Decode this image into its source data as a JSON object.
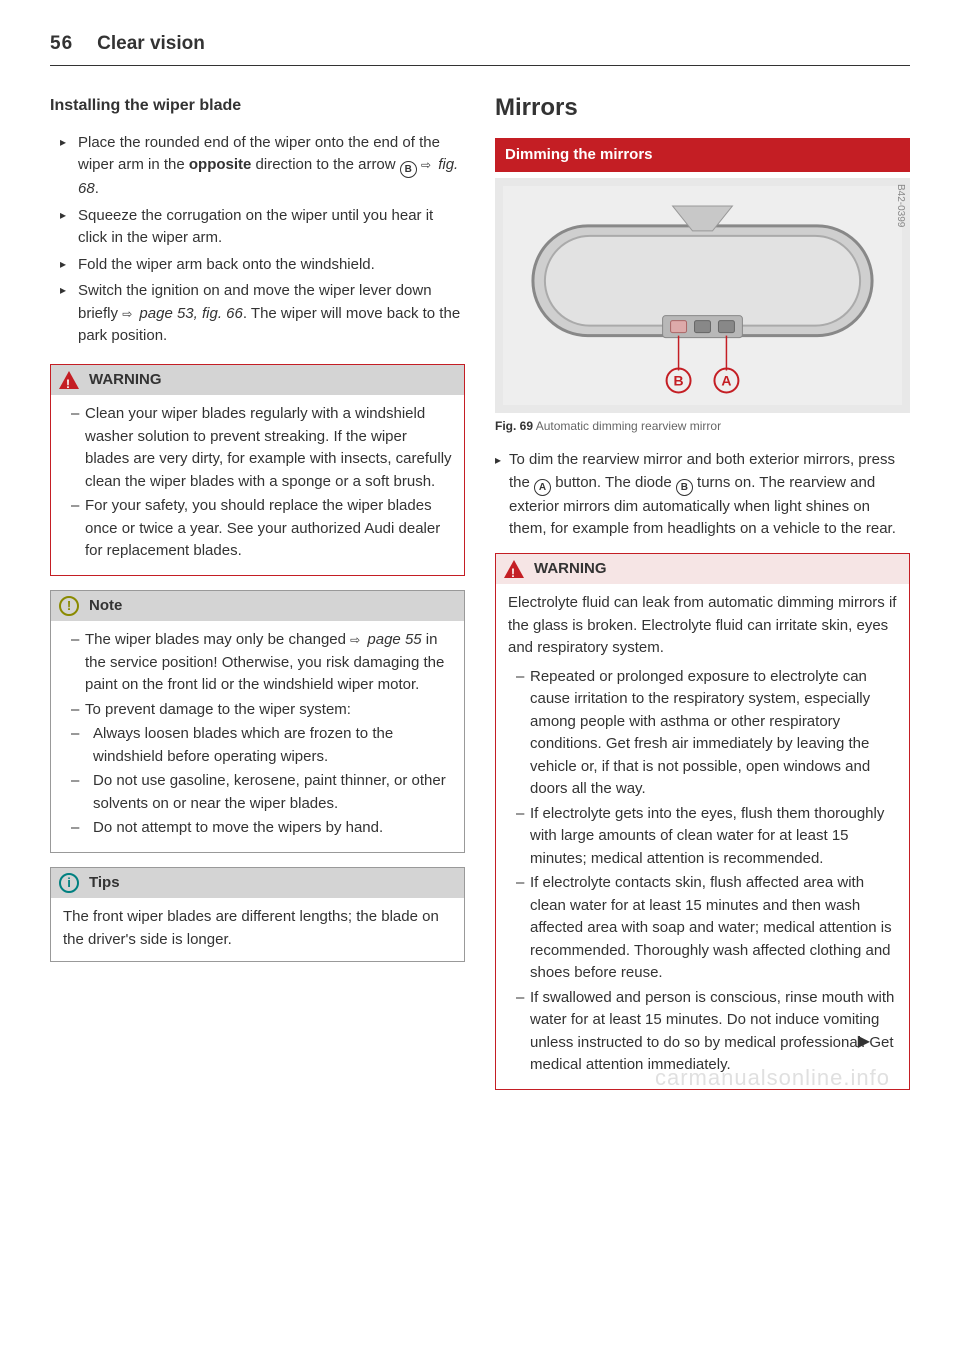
{
  "page": {
    "number": "56",
    "title": "Clear vision"
  },
  "left": {
    "heading": "Installing the wiper blade",
    "steps": [
      "Place the rounded end of the wiper onto the end of the wiper arm in the <b>opposite</b> direction to the arrow <circ>B</circ> <arrow></arrow> <i>fig. 68</i>.",
      "Squeeze the corrugation on the wiper until you hear it click in the wiper arm.",
      "Fold the wiper arm back onto the windshield.",
      "Switch the ignition on and move the wiper lever down briefly <arrow></arrow> <i>page 53, fig. 66</i>. The wiper will move back to the park position."
    ],
    "warning": {
      "label": "WARNING",
      "items": [
        "Clean your wiper blades regularly with a windshield washer solution to prevent streaking. If the wiper blades are very dirty, for example with insects, carefully clean the wiper blades with a sponge or a soft brush.",
        "For your safety, you should replace the wiper blades once or twice a year. See your authorized Audi dealer for replacement blades."
      ]
    },
    "note": {
      "label": "Note",
      "items": [
        "The wiper blades may only be changed <arrow></arrow> <i>page 55</i> in the service position! Otherwise, you risk damaging the paint on the front lid or the windshield wiper motor.",
        "To prevent damage to the wiper system:"
      ],
      "nested": [
        "Always loosen blades which are frozen to the windshield before operating wipers.",
        "Do not use gasoline, kerosene, paint thinner, or other solvents on or near the wiper blades.",
        "Do not attempt to move the wipers by hand."
      ]
    },
    "tips": {
      "label": "Tips",
      "body": "The front wiper blades are different lengths; the blade on the driver's side is longer."
    }
  },
  "right": {
    "sectionTitle": "Mirrors",
    "redTitle": "Dimming the mirrors",
    "figCode": "B42-0399",
    "figLabel": "Fig. 69",
    "figCaption": "Automatic dimming rearview mirror",
    "intro": "To dim the rearview mirror and both exterior mirrors, press the <circ>A</circ> button. The diode <circ>B</circ> turns on. The rearview and exterior mirrors dim automatically when light shines on them, for example from headlights on a vehicle to the rear.",
    "warning": {
      "label": "WARNING",
      "lead": "Electrolyte fluid can leak from automatic dimming mirrors if the glass is broken. Electrolyte fluid can irritate skin, eyes and respiratory system.",
      "items": [
        "Repeated or prolonged exposure to electrolyte can cause irritation to the respiratory system, especially among people with asthma or other respiratory conditions. Get fresh air immediately by leaving the vehicle or, if that is not possible, open windows and doors all the way.",
        "If electrolyte gets into the eyes, flush them thoroughly with large amounts of clean water for at least 15 minutes; medical attention is recommended.",
        "If electrolyte contacts skin, flush affected area with clean water for at least 15 minutes and then wash affected area with soap and water; medical attention is recommended. Thoroughly wash affected clothing and shoes before reuse.",
        "If swallowed and person is conscious, rinse mouth with water for at least 15 minutes. Do not induce vomiting unless instructed to do so by medical professional. Get medical attention immediately."
      ]
    }
  },
  "watermark": "carmanualsonline.info"
}
